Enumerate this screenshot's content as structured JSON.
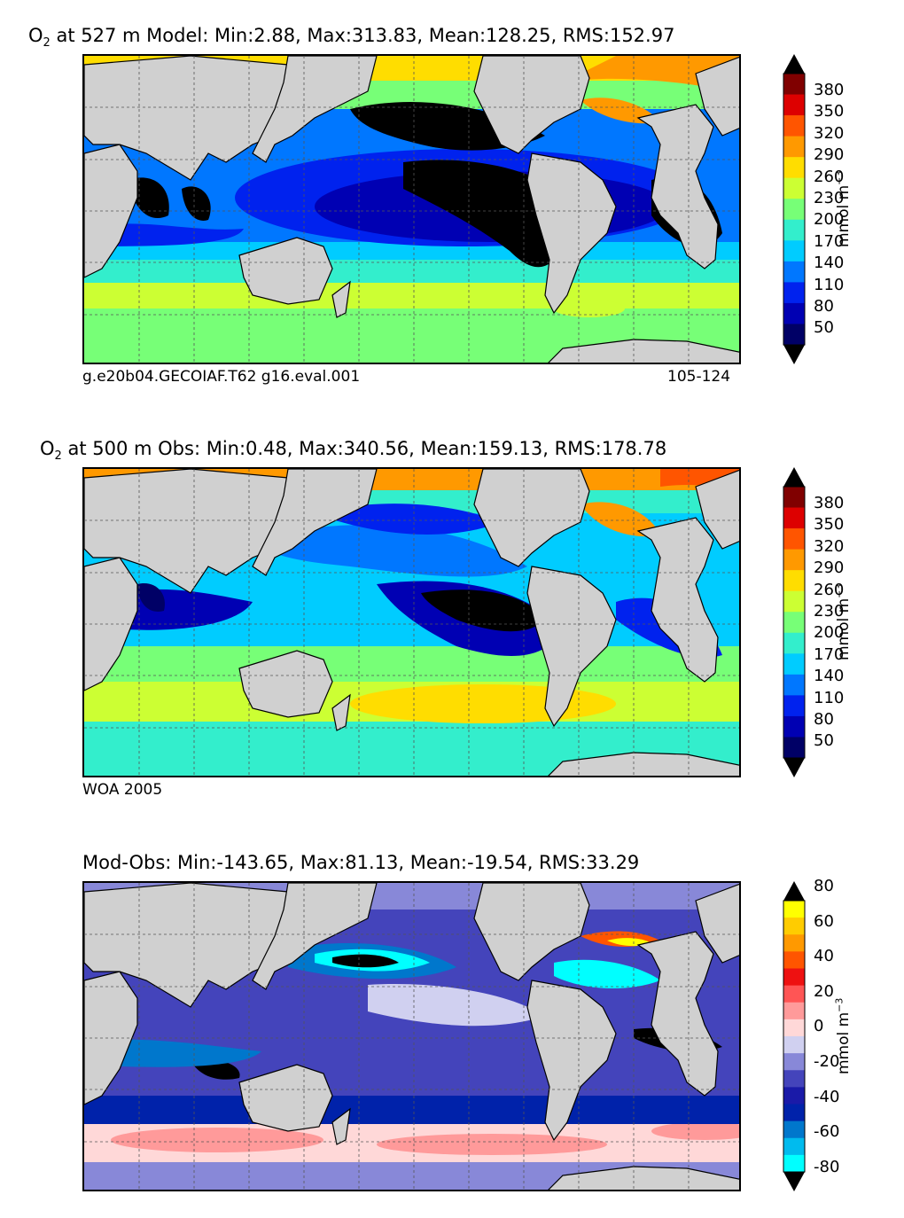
{
  "colors": {
    "land": "#d0d0d0",
    "jet": [
      "#000066",
      "#0000b3",
      "#0022ee",
      "#0077ff",
      "#00ccff",
      "#33eecc",
      "#77ff77",
      "#ccff33",
      "#ffdd00",
      "#ff9900",
      "#ff5500",
      "#dd0000",
      "#800000"
    ],
    "diff": [
      "#00ffff",
      "#00bbee",
      "#0077cc",
      "#0022aa",
      "#1a1aa8",
      "#4444bb",
      "#8888d8",
      "#d0d0f0",
      "#ffd8d8",
      "#ff9a9a",
      "#ff5555",
      "#ee1111",
      "#ff5500",
      "#ff9900",
      "#ffcc00",
      "#ffff00"
    ],
    "ocean_black": "#000000"
  },
  "panel1": {
    "title_pre": "O",
    "title_sub": "2",
    "title_post": " at 527 m Model: Min:2.88, Max:313.83, Mean:128.25, RMS:152.97",
    "note_left": "g.e20b04.GECOIAF.T62 g16.eval.001",
    "note_right": "105-124",
    "ticks": [
      "380",
      "350",
      "320",
      "290",
      "260",
      "230",
      "200",
      "170",
      "140",
      "110",
      "80",
      "50"
    ],
    "units_main": "mmol m",
    "units_sup": "−3"
  },
  "panel2": {
    "title_pre": "O",
    "title_sub": "2",
    "title_post": " at 500 m Obs: Min:0.48, Max:340.56, Mean:159.13, RMS:178.78",
    "note_left": "WOA 2005",
    "ticks": [
      "380",
      "350",
      "320",
      "290",
      "260",
      "230",
      "200",
      "170",
      "140",
      "110",
      "80",
      "50"
    ],
    "units_main": "mmol m",
    "units_sup": "−3"
  },
  "panel3": {
    "title": "Mod-Obs: Min:-143.65, Max:81.13, Mean:-19.54, RMS:33.29",
    "ticks": [
      "80",
      "60",
      "40",
      "20",
      "0",
      "-20",
      "-40",
      "-60",
      "-80"
    ],
    "units_main": "mmol m",
    "units_sup": "−3"
  }
}
